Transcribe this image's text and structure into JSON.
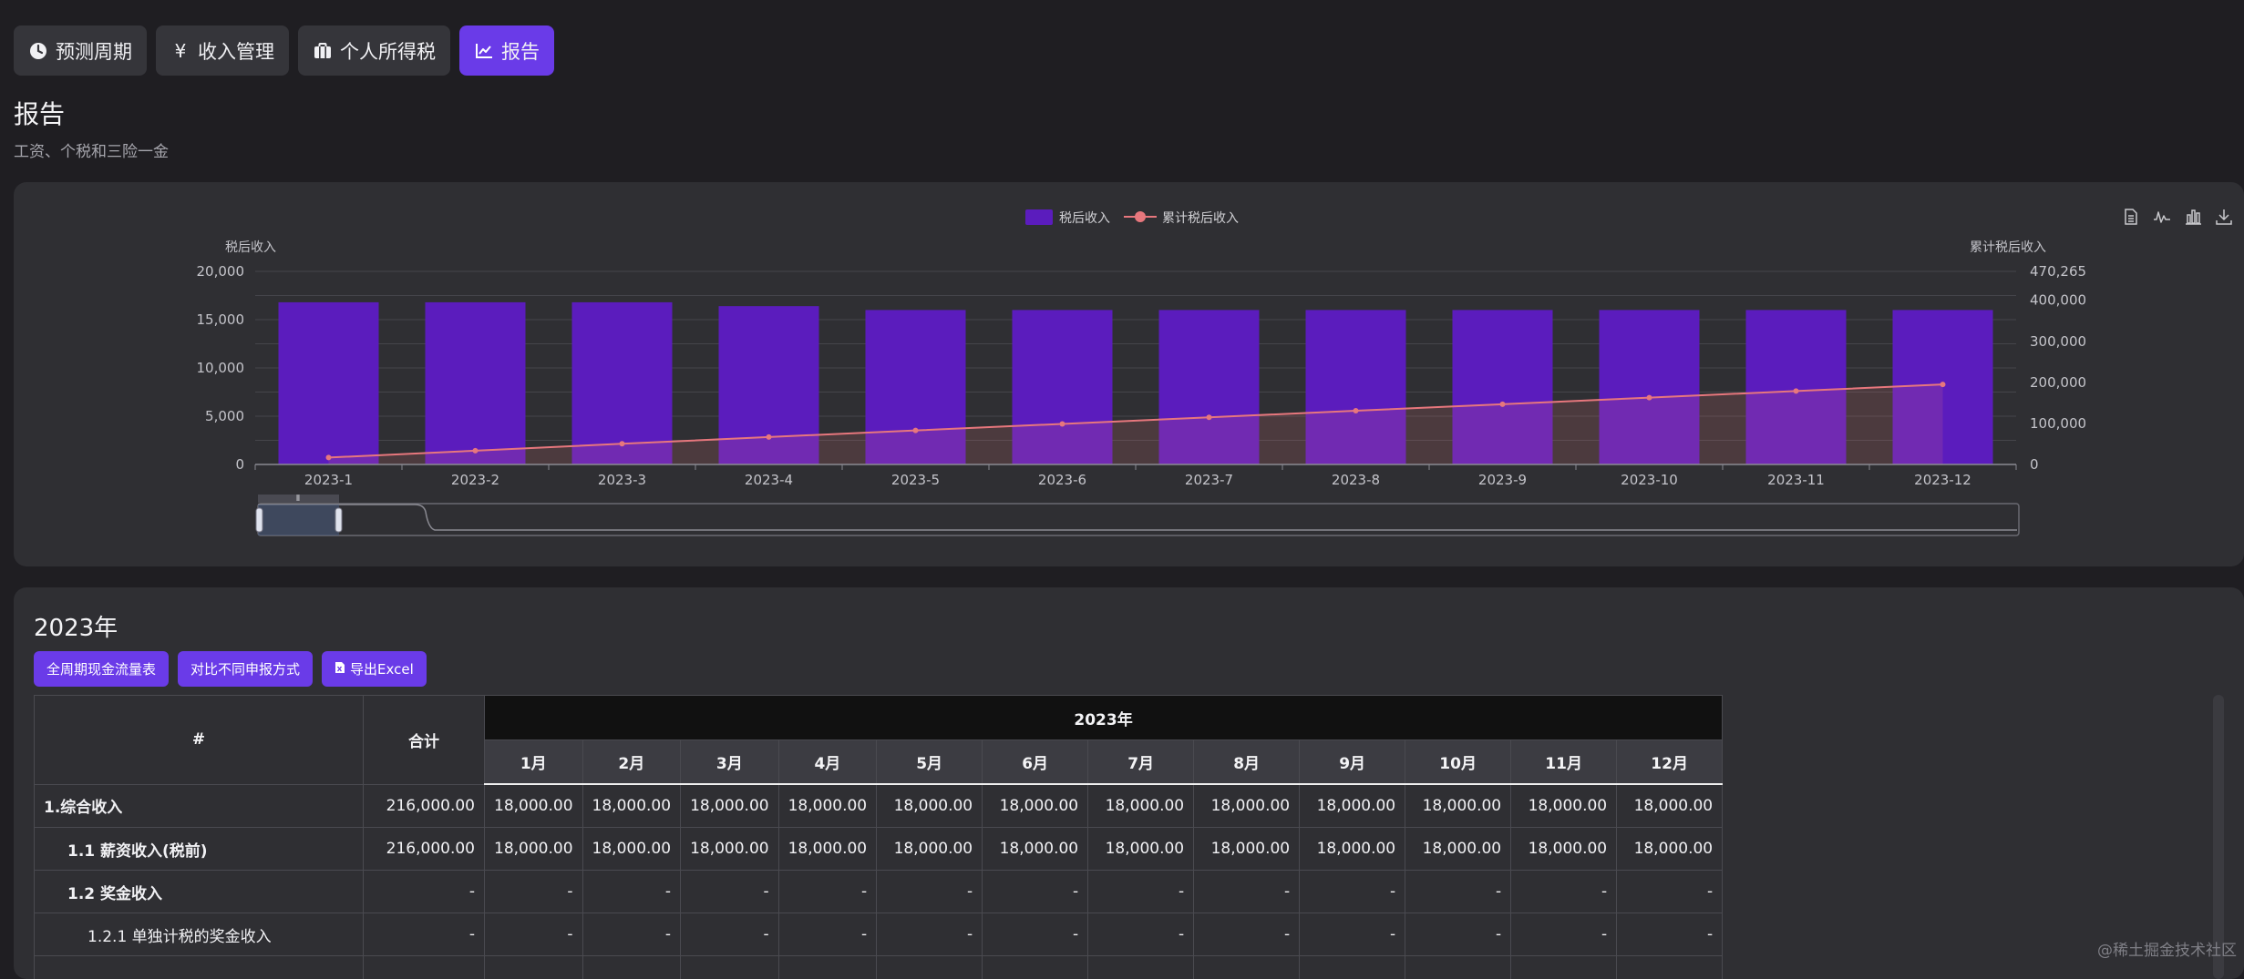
{
  "nav": [
    {
      "label": "预测周期",
      "icon": "clock-icon",
      "active": false
    },
    {
      "label": "收入管理",
      "icon": "yen-icon",
      "active": false
    },
    {
      "label": "个人所得税",
      "icon": "briefcase-icon",
      "active": false
    },
    {
      "label": "报告",
      "icon": "line-chart-icon",
      "active": true
    }
  ],
  "page": {
    "title": "报告",
    "subtitle": "工资、个税和三险一金"
  },
  "colors": {
    "accent": "#6a3be8",
    "bar": "#5b1cbd",
    "line": "#e7777d"
  },
  "chart_data": {
    "type": "bar",
    "legend": [
      "税后收入",
      "累计税后收入"
    ],
    "categories": [
      "2023-1",
      "2023-2",
      "2023-3",
      "2023-4",
      "2023-5",
      "2023-6",
      "2023-7",
      "2023-8",
      "2023-9",
      "2023-10",
      "2023-11",
      "2023-12"
    ],
    "series": [
      {
        "name": "税后收入",
        "type": "bar",
        "axis": "left",
        "values": [
          16800,
          16800,
          16800,
          16400,
          16000,
          16000,
          16000,
          16000,
          16000,
          16000,
          16000,
          16000
        ]
      },
      {
        "name": "累计税后收入",
        "type": "line",
        "axis": "right",
        "values": [
          16800,
          33600,
          50400,
          66800,
          82800,
          98800,
          114800,
          130800,
          146800,
          162800,
          178800,
          194800
        ]
      }
    ],
    "ylabel_left": "税后收入",
    "ylabel_right": "累计税后收入",
    "left_ticks": [
      "20,000",
      "15,000",
      "10,000",
      "5,000",
      "0"
    ],
    "right_ticks": [
      "470,265",
      "400,000",
      "300,000",
      "200,000",
      "100,000",
      "0"
    ],
    "ylim_left": [
      0,
      20000
    ],
    "ylim_right": [
      0,
      470265
    ],
    "toolbox": [
      "data-view-icon",
      "line-toggle-icon",
      "bar-toggle-icon",
      "download-icon"
    ]
  },
  "report": {
    "year_title": "2023年",
    "actions": [
      "全周期现金流量表",
      "对比不同申报方式",
      "导出Excel"
    ],
    "table": {
      "hash": "#",
      "total": "合计",
      "year": "2023年",
      "months": [
        "1月",
        "2月",
        "3月",
        "4月",
        "5月",
        "6月",
        "7月",
        "8月",
        "9月",
        "10月",
        "11月",
        "12月"
      ],
      "rows": [
        {
          "label": "1.综合收入",
          "level": 1,
          "total": "216,000.00",
          "cells": [
            "18,000.00",
            "18,000.00",
            "18,000.00",
            "18,000.00",
            "18,000.00",
            "18,000.00",
            "18,000.00",
            "18,000.00",
            "18,000.00",
            "18,000.00",
            "18,000.00",
            "18,000.00"
          ]
        },
        {
          "label": "1.1 薪资收入(税前)",
          "level": 2,
          "total": "216,000.00",
          "cells": [
            "18,000.00",
            "18,000.00",
            "18,000.00",
            "18,000.00",
            "18,000.00",
            "18,000.00",
            "18,000.00",
            "18,000.00",
            "18,000.00",
            "18,000.00",
            "18,000.00",
            "18,000.00"
          ]
        },
        {
          "label": "1.2 奖金收入",
          "level": 2,
          "total": "-",
          "cells": [
            "-",
            "-",
            "-",
            "-",
            "-",
            "-",
            "-",
            "-",
            "-",
            "-",
            "-",
            "-"
          ]
        },
        {
          "label": "1.2.1 单独计税的奖金收入",
          "level": 3,
          "total": "-",
          "cells": [
            "-",
            "-",
            "-",
            "-",
            "-",
            "-",
            "-",
            "-",
            "-",
            "-",
            "-",
            "-"
          ]
        },
        {
          "label": "",
          "level": 3,
          "total": "",
          "cells": [
            "",
            "",
            "",
            "",
            "",
            "",
            "",
            "",
            "",
            "",
            "",
            ""
          ]
        }
      ]
    }
  },
  "watermark": "@稀土掘金技术社区"
}
